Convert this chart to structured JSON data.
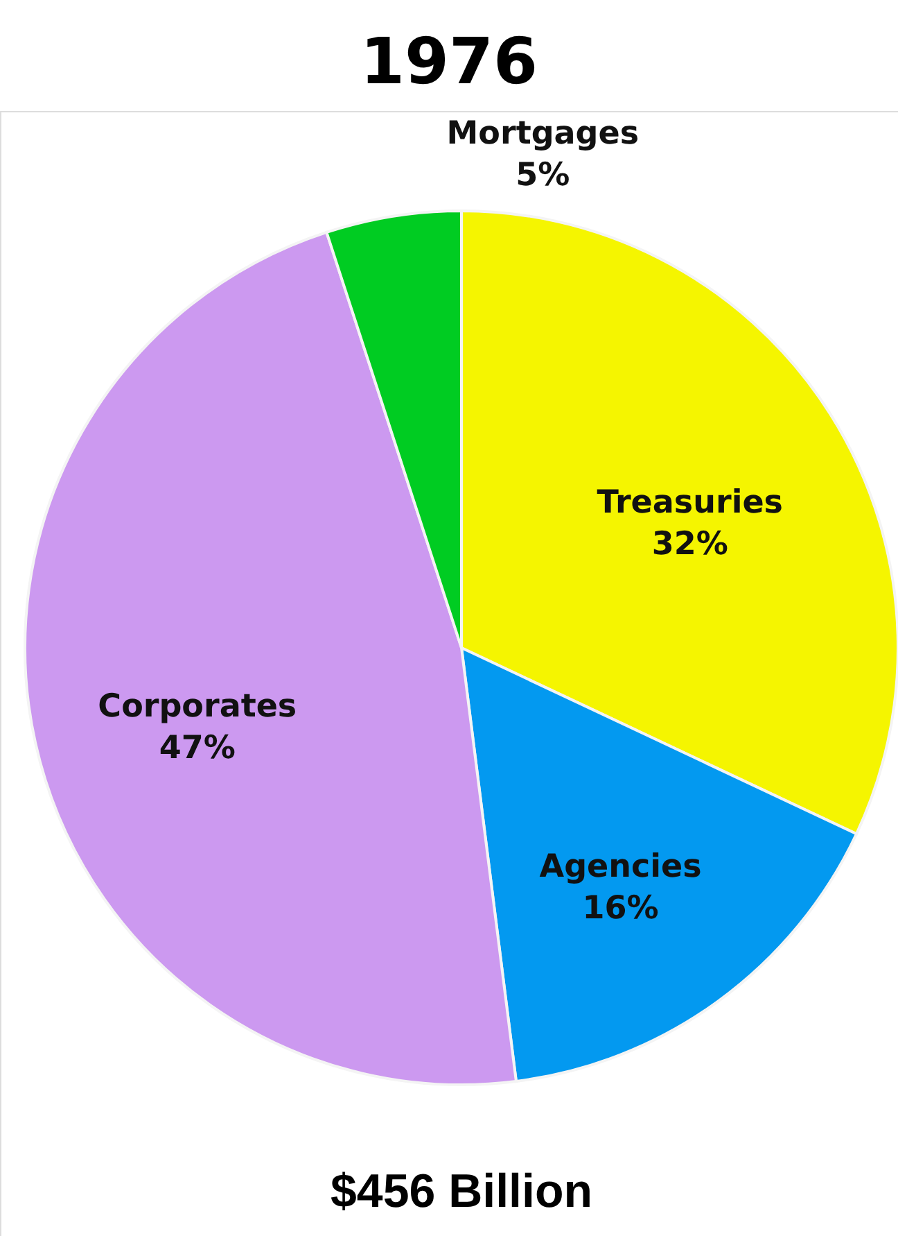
{
  "chart_data": {
    "type": "pie",
    "title": "1976",
    "categories": [
      "Treasuries",
      "Agencies",
      "Corporates",
      "Mortgages"
    ],
    "values": [
      32,
      16,
      47,
      5
    ],
    "value_labels": [
      "32%",
      "16%",
      "47%",
      "5%"
    ],
    "colors": [
      "#f5f500",
      "#0399f0",
      "#cc99f0",
      "#00cc22"
    ],
    "annotations": [
      "$456 Billion"
    ]
  }
}
